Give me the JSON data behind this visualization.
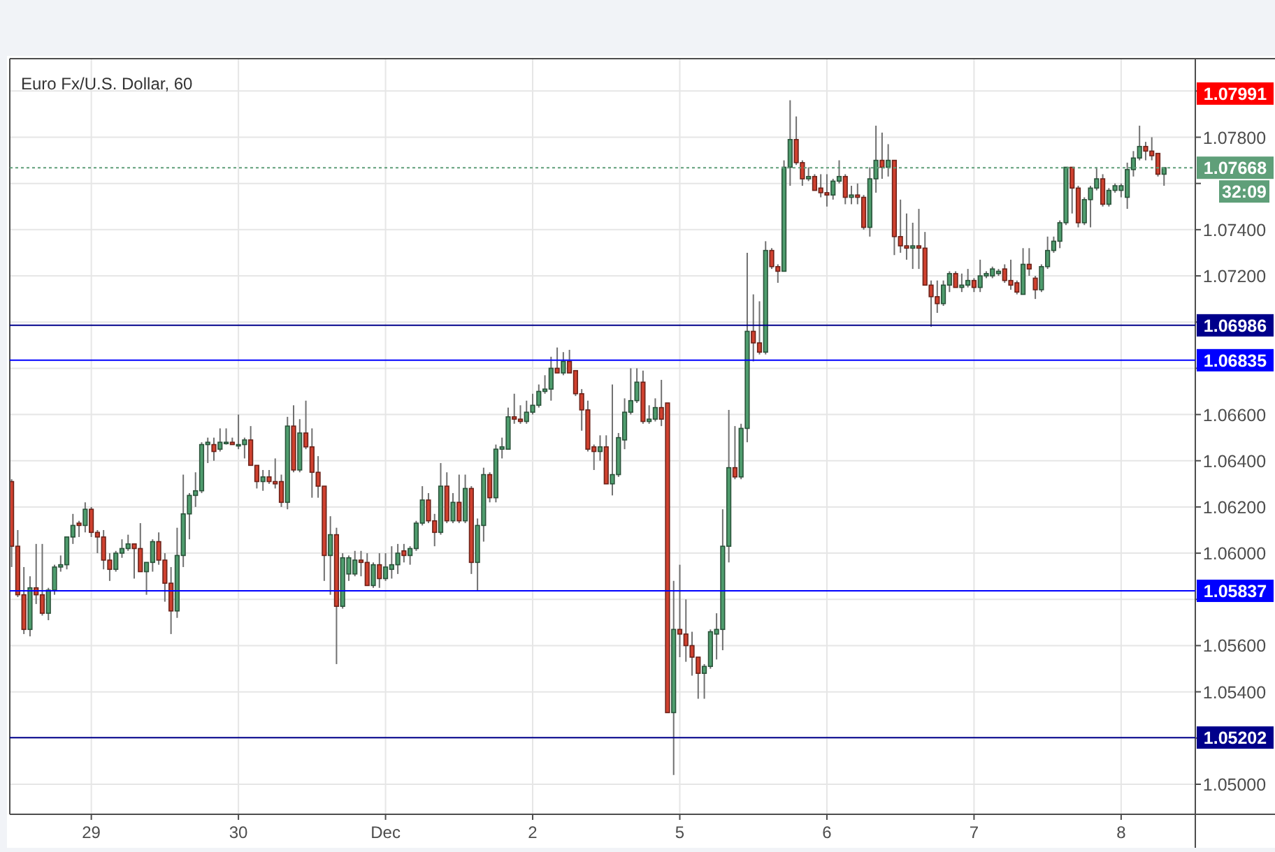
{
  "chart_data": {
    "type": "candlestick",
    "title": "Euro Fx/U.S. Dollar, 60",
    "categories": [
      null,
      null,
      null,
      null,
      null,
      null,
      null,
      null,
      null,
      null,
      null,
      null,
      null,
      "29",
      null,
      null,
      null,
      null,
      null,
      null,
      null,
      null,
      null,
      null,
      null,
      null,
      null,
      null,
      null,
      null,
      null,
      null,
      null,
      null,
      null,
      null,
      null,
      "30",
      null,
      null,
      null,
      null,
      null,
      null,
      null,
      null,
      null,
      null,
      null,
      null,
      null,
      null,
      null,
      null,
      null,
      null,
      null,
      null,
      null,
      null,
      null,
      "Dec",
      null,
      null,
      null,
      null,
      null,
      null,
      null,
      null,
      null,
      null,
      null,
      null,
      null,
      null,
      null,
      null,
      null,
      null,
      null,
      null,
      null,
      null,
      null,
      "2",
      null,
      null,
      null,
      null,
      null,
      null,
      null,
      null,
      null,
      null,
      null,
      null,
      null,
      null,
      null,
      null,
      null,
      null,
      null,
      null,
      null,
      null,
      null,
      "5",
      null,
      null,
      null,
      null,
      null,
      null,
      null,
      null,
      null,
      null,
      null,
      null,
      null,
      null,
      null,
      null,
      null,
      null,
      null,
      null,
      null,
      null,
      null,
      "6",
      null,
      null,
      null,
      null,
      null,
      null,
      null,
      null,
      null,
      null,
      null,
      null,
      null,
      null,
      null,
      null,
      null,
      null,
      null,
      null,
      null,
      null,
      null,
      "7",
      null,
      null,
      null,
      null,
      null,
      null,
      null,
      null,
      null,
      null,
      null,
      null,
      null,
      null,
      null,
      null,
      null,
      null,
      null,
      null,
      null,
      null,
      null,
      "8",
      null,
      null,
      null,
      null,
      null,
      null,
      null
    ],
    "ohlc": [
      [
        1.0631,
        1.0632,
        1.0594,
        1.0603
      ],
      [
        1.0603,
        1.061,
        1.0581,
        1.0582
      ],
      [
        1.0582,
        1.0594,
        1.0565,
        1.0567
      ],
      [
        1.0567,
        1.059,
        1.0564,
        1.0585
      ],
      [
        1.0585,
        1.0604,
        1.0578,
        1.0582
      ],
      [
        1.0582,
        1.0604,
        1.0573,
        1.0574
      ],
      [
        1.0574,
        1.0585,
        1.0571,
        1.0584
      ],
      [
        1.0584,
        1.0595,
        1.0582,
        1.0594
      ],
      [
        1.0594,
        1.0599,
        1.0592,
        1.0595
      ],
      [
        1.0595,
        1.0607,
        1.0593,
        1.0607
      ],
      [
        1.0607,
        1.0617,
        1.0604,
        1.0612
      ],
      [
        1.0613,
        1.0614,
        1.0607,
        1.0612
      ],
      [
        1.0612,
        1.0622,
        1.0609,
        1.0619
      ],
      [
        1.0619,
        1.062,
        1.0607,
        1.0609
      ],
      [
        1.0609,
        1.061,
        1.06,
        1.0607
      ],
      [
        1.0607,
        1.061,
        1.0593,
        1.0597
      ],
      [
        1.0597,
        1.06,
        1.0588,
        1.0593
      ],
      [
        1.0593,
        1.0601,
        1.0592,
        1.06
      ],
      [
        1.06,
        1.0606,
        1.0598,
        1.0602
      ],
      [
        1.0602,
        1.0608,
        1.0601,
        1.0604
      ],
      [
        1.0604,
        1.0604,
        1.0589,
        1.0602
      ],
      [
        1.0602,
        1.0613,
        1.0592,
        1.0592
      ],
      [
        1.0592,
        1.0596,
        1.0582,
        1.0596
      ],
      [
        1.0596,
        1.0606,
        1.0592,
        1.0605
      ],
      [
        1.0605,
        1.0609,
        1.0595,
        1.0597
      ],
      [
        1.0597,
        1.06,
        1.0579,
        1.0587
      ],
      [
        1.0587,
        1.0594,
        1.0565,
        1.0575
      ],
      [
        1.0575,
        1.0611,
        1.0572,
        1.0599
      ],
      [
        1.0599,
        1.0634,
        1.0594,
        1.0617
      ],
      [
        1.0617,
        1.0626,
        1.0606,
        1.0625
      ],
      [
        1.0625,
        1.0635,
        1.062,
        1.0627
      ],
      [
        1.0627,
        1.0648,
        1.0626,
        1.0647
      ],
      [
        1.0647,
        1.065,
        1.0639,
        1.0648
      ],
      [
        1.0647,
        1.065,
        1.064,
        1.0644
      ],
      [
        1.0645,
        1.0654,
        1.0644,
        1.0648
      ],
      [
        1.0648,
        1.0654,
        1.0647,
        1.0648
      ],
      [
        1.0648,
        1.065,
        1.0647,
        1.0647
      ],
      [
        1.0647,
        1.066,
        1.0645,
        1.0647
      ],
      [
        1.0647,
        1.065,
        1.0641,
        1.0649
      ],
      [
        1.0649,
        1.0655,
        1.0638,
        1.0638
      ],
      [
        1.0638,
        1.0638,
        1.0628,
        1.0631
      ],
      [
        1.0631,
        1.0636,
        1.0627,
        1.0633
      ],
      [
        1.0633,
        1.0636,
        1.063,
        1.0631
      ],
      [
        1.0631,
        1.0641,
        1.0628,
        1.063
      ],
      [
        1.0631,
        1.0634,
        1.062,
        1.0622
      ],
      [
        1.0622,
        1.0659,
        1.0619,
        1.0655
      ],
      [
        1.0655,
        1.0664,
        1.0635,
        1.0636
      ],
      [
        1.0636,
        1.0658,
        1.0635,
        1.0652
      ],
      [
        1.0652,
        1.0666,
        1.0645,
        1.0646
      ],
      [
        1.0646,
        1.0654,
        1.0624,
        1.0635
      ],
      [
        1.0635,
        1.0642,
        1.0624,
        1.0629
      ],
      [
        1.0629,
        1.0629,
        1.0588,
        1.0599
      ],
      [
        1.0599,
        1.0616,
        1.0582,
        1.0608
      ],
      [
        1.0608,
        1.0611,
        1.0552,
        1.0577
      ],
      [
        1.0577,
        1.06,
        1.0576,
        1.0598
      ],
      [
        1.0591,
        1.0599,
        1.0588,
        1.0598
      ],
      [
        1.0591,
        1.0601,
        1.059,
        1.0597
      ],
      [
        1.0597,
        1.0601,
        1.059,
        1.0596
      ],
      [
        1.0596,
        1.06,
        1.0586,
        1.0586
      ],
      [
        1.0586,
        1.0596,
        1.0585,
        1.0595
      ],
      [
        1.0595,
        1.06,
        1.0585,
        1.0589
      ],
      [
        1.0589,
        1.06,
        1.0588,
        1.0594
      ],
      [
        1.0593,
        1.0603,
        1.0589,
        1.0595
      ],
      [
        1.0595,
        1.0604,
        1.0591,
        1.06
      ],
      [
        1.0601,
        1.0604,
        1.0596,
        1.0599
      ],
      [
        1.0599,
        1.0603,
        1.0595,
        1.0602
      ],
      [
        1.0602,
        1.0614,
        1.0601,
        1.0613
      ],
      [
        1.0613,
        1.0629,
        1.0612,
        1.0623
      ],
      [
        1.0623,
        1.0626,
        1.0613,
        1.0614
      ],
      [
        1.0614,
        1.0617,
        1.0603,
        1.0609
      ],
      [
        1.0609,
        1.0639,
        1.0608,
        1.0629
      ],
      [
        1.0629,
        1.0635,
        1.0613,
        1.0614
      ],
      [
        1.0614,
        1.0626,
        1.0613,
        1.0622
      ],
      [
        1.0622,
        1.0634,
        1.0613,
        1.0614
      ],
      [
        1.0614,
        1.0634,
        1.0613,
        1.0628
      ],
      [
        1.0628,
        1.0629,
        1.0591,
        1.0596
      ],
      [
        1.0596,
        1.0615,
        1.0584,
        1.0612
      ],
      [
        1.0612,
        1.0637,
        1.0605,
        1.0634
      ],
      [
        1.0634,
        1.0635,
        1.0622,
        1.0624
      ],
      [
        1.0624,
        1.0647,
        1.0622,
        1.0645
      ],
      [
        1.0645,
        1.065,
        1.0641,
        1.0646
      ],
      [
        1.0645,
        1.0663,
        1.0645,
        1.0659
      ],
      [
        1.0659,
        1.0669,
        1.0656,
        1.0658
      ],
      [
        1.0658,
        1.0664,
        1.0656,
        1.0657
      ],
      [
        1.0657,
        1.0666,
        1.0656,
        1.0661
      ],
      [
        1.0661,
        1.0669,
        1.066,
        1.0664
      ],
      [
        1.0664,
        1.0673,
        1.0663,
        1.067
      ],
      [
        1.067,
        1.0677,
        1.0669,
        1.0671
      ],
      [
        1.0671,
        1.0685,
        1.0666,
        1.068
      ],
      [
        1.068,
        1.0689,
        1.0678,
        1.0678
      ],
      [
        1.0678,
        1.0687,
        1.0677,
        1.0683
      ],
      [
        1.0683,
        1.0688,
        1.0678,
        1.0678
      ],
      [
        1.0679,
        1.0679,
        1.0668,
        1.0669
      ],
      [
        1.0669,
        1.0671,
        1.0653,
        1.0662
      ],
      [
        1.0662,
        1.0666,
        1.0644,
        1.0645
      ],
      [
        1.0646,
        1.0647,
        1.0636,
        1.0644
      ],
      [
        1.0644,
        1.0651,
        1.064,
        1.0646
      ],
      [
        1.0646,
        1.0651,
        1.063,
        1.063
      ],
      [
        1.063,
        1.0673,
        1.0625,
        1.0634
      ],
      [
        1.0634,
        1.0652,
        1.0633,
        1.065
      ],
      [
        1.0649,
        1.0667,
        1.0645,
        1.0661
      ],
      [
        1.0661,
        1.068,
        1.066,
        1.0666
      ],
      [
        1.0666,
        1.068,
        1.0665,
        1.0674
      ],
      [
        1.0674,
        1.0679,
        1.0656,
        1.0657
      ],
      [
        1.0657,
        1.0664,
        1.0656,
        1.0658
      ],
      [
        1.0658,
        1.0667,
        1.0657,
        1.0663
      ],
      [
        1.0663,
        1.0675,
        1.0655,
        1.0658
      ],
      [
        1.0665,
        1.0665,
        1.0531,
        1.0531
      ],
      [
        1.0531,
        1.0588,
        1.0504,
        1.0567
      ],
      [
        1.0567,
        1.0595,
        1.0555,
        1.0565
      ],
      [
        1.0565,
        1.058,
        1.0553,
        1.056
      ],
      [
        1.056,
        1.0566,
        1.0547,
        1.0555
      ],
      [
        1.0555,
        1.0555,
        1.0537,
        1.0548
      ],
      [
        1.0548,
        1.0552,
        1.0537,
        1.0551
      ],
      [
        1.0551,
        1.0567,
        1.055,
        1.0566
      ],
      [
        1.0565,
        1.0574,
        1.0554,
        1.0567
      ],
      [
        1.0567,
        1.0619,
        1.0558,
        1.0603
      ],
      [
        1.0603,
        1.0662,
        1.0596,
        1.0637
      ],
      [
        1.0637,
        1.0655,
        1.0632,
        1.0633
      ],
      [
        1.0633,
        1.0656,
        1.0632,
        1.0654
      ],
      [
        1.0654,
        1.073,
        1.0648,
        1.0696
      ],
      [
        1.0696,
        1.0712,
        1.0683,
        1.0691
      ],
      [
        1.0691,
        1.0709,
        1.0686,
        1.0687
      ],
      [
        1.0687,
        1.0735,
        1.0686,
        1.0731
      ],
      [
        1.0731,
        1.0732,
        1.0723,
        1.0724
      ],
      [
        1.0724,
        1.0725,
        1.0717,
        1.0722
      ],
      [
        1.0722,
        1.077,
        1.0722,
        1.0767
      ],
      [
        1.0767,
        1.0796,
        1.0759,
        1.0779
      ],
      [
        1.0779,
        1.0789,
        1.0768,
        1.0769
      ],
      [
        1.0769,
        1.077,
        1.0759,
        1.0762
      ],
      [
        1.0762,
        1.0767,
        1.0761,
        1.0763
      ],
      [
        1.0763,
        1.0764,
        1.0757,
        1.0757
      ],
      [
        1.0758,
        1.0764,
        1.0754,
        1.0756
      ],
      [
        1.0756,
        1.0764,
        1.075,
        1.0755
      ],
      [
        1.0755,
        1.0762,
        1.0753,
        1.0761
      ],
      [
        1.0761,
        1.077,
        1.076,
        1.0763
      ],
      [
        1.0763,
        1.0764,
        1.0751,
        1.0754
      ],
      [
        1.0754,
        1.0759,
        1.0751,
        1.0755
      ],
      [
        1.0755,
        1.076,
        1.0751,
        1.0754
      ],
      [
        1.0754,
        1.0755,
        1.074,
        1.0741
      ],
      [
        1.0741,
        1.0767,
        1.0737,
        1.0762
      ],
      [
        1.0762,
        1.0785,
        1.0756,
        1.077
      ],
      [
        1.077,
        1.0782,
        1.0762,
        1.0767
      ],
      [
        1.0767,
        1.0777,
        1.0763,
        1.077
      ],
      [
        1.077,
        1.077,
        1.0729,
        1.0737
      ],
      [
        1.0737,
        1.0753,
        1.073,
        1.0733
      ],
      [
        1.0733,
        1.0747,
        1.0727,
        1.0732
      ],
      [
        1.0732,
        1.0743,
        1.0723,
        1.0733
      ],
      [
        1.0733,
        1.0749,
        1.0723,
        1.0732
      ],
      [
        1.0732,
        1.0739,
        1.0716,
        1.0716
      ],
      [
        1.0716,
        1.0718,
        1.0698,
        1.0711
      ],
      [
        1.0711,
        1.0718,
        1.0704,
        1.0708
      ],
      [
        1.0708,
        1.0718,
        1.0707,
        1.0716
      ],
      [
        1.0716,
        1.0722,
        1.0713,
        1.0721
      ],
      [
        1.0721,
        1.0722,
        1.0715,
        1.0715
      ],
      [
        1.0715,
        1.0721,
        1.0713,
        1.0716
      ],
      [
        1.0716,
        1.0723,
        1.0715,
        1.0718
      ],
      [
        1.0718,
        1.0719,
        1.0713,
        1.0715
      ],
      [
        1.0715,
        1.0727,
        1.0713,
        1.072
      ],
      [
        1.072,
        1.0722,
        1.0719,
        1.0721
      ],
      [
        1.072,
        1.0724,
        1.0719,
        1.0723
      ],
      [
        1.0721,
        1.0723,
        1.072,
        1.0722
      ],
      [
        1.0723,
        1.0725,
        1.0717,
        1.0718
      ],
      [
        1.0718,
        1.0727,
        1.0714,
        1.0716
      ],
      [
        1.0717,
        1.0718,
        1.0712,
        1.0713
      ],
      [
        1.0712,
        1.0732,
        1.0712,
        1.0725
      ],
      [
        1.0725,
        1.0732,
        1.072,
        1.0723
      ],
      [
        1.0719,
        1.072,
        1.071,
        1.0714
      ],
      [
        1.0714,
        1.0725,
        1.0713,
        1.0724
      ],
      [
        1.0724,
        1.0737,
        1.0723,
        1.0731
      ],
      [
        1.0731,
        1.0737,
        1.073,
        1.0735
      ],
      [
        1.0735,
        1.0744,
        1.0732,
        1.0743
      ],
      [
        1.0743,
        1.0767,
        1.0742,
        1.0767
      ],
      [
        1.0767,
        1.0767,
        1.0747,
        1.0758
      ],
      [
        1.0758,
        1.0759,
        1.0741,
        1.0743
      ],
      [
        1.0743,
        1.0754,
        1.0742,
        1.0753
      ],
      [
        1.0753,
        1.0759,
        1.0741,
        1.0758
      ],
      [
        1.0758,
        1.0767,
        1.0757,
        1.0762
      ],
      [
        1.0762,
        1.0764,
        1.075,
        1.0751
      ],
      [
        1.0751,
        1.0758,
        1.075,
        1.0757
      ],
      [
        1.0757,
        1.076,
        1.0756,
        1.0759
      ],
      [
        1.0757,
        1.076,
        1.0754,
        1.0759
      ],
      [
        1.0754,
        1.0769,
        1.0749,
        1.0766
      ],
      [
        1.0766,
        1.0774,
        1.0763,
        1.0771
      ],
      [
        1.0771,
        1.0785,
        1.077,
        1.0776
      ],
      [
        1.0776,
        1.0778,
        1.077,
        1.0774
      ],
      [
        1.0774,
        1.078,
        1.077,
        1.0772
      ],
      [
        1.0773,
        1.0773,
        1.0763,
        1.0764
      ],
      [
        1.0764,
        1.0767,
        1.0759,
        1.07668
      ]
    ],
    "colors": [
      "#d0412f",
      "#d0412f",
      "#d0412f",
      "#4f9d6e",
      "#d0412f",
      "#d0412f",
      "#4f9d6e",
      "#4f9d6e",
      "#4f9d6e",
      "#4f9d6e",
      "#4f9d6e",
      "#d0412f",
      "#4f9d6e",
      "#d0412f",
      "#d0412f",
      "#d0412f",
      "#d0412f",
      "#4f9d6e",
      "#4f9d6e",
      "#4f9d6e",
      "#d0412f",
      "#d0412f",
      "#4f9d6e",
      "#4f9d6e",
      "#d0412f",
      "#d0412f",
      "#d0412f",
      "#4f9d6e",
      "#4f9d6e",
      "#4f9d6e",
      "#4f9d6e",
      "#4f9d6e",
      "#4f9d6e",
      "#d0412f",
      "#4f9d6e",
      "#4f9d6e",
      "#d0412f",
      "#4f9d6e",
      "#4f9d6e",
      "#d0412f",
      "#d0412f",
      "#4f9d6e",
      "#d0412f",
      "#d0412f",
      "#d0412f",
      "#4f9d6e",
      "#d0412f",
      "#4f9d6e",
      "#d0412f",
      "#d0412f",
      "#d0412f",
      "#d0412f",
      "#4f9d6e",
      "#d0412f",
      "#4f9d6e",
      "#4f9d6e",
      "#4f9d6e",
      "#d0412f",
      "#d0412f",
      "#4f9d6e",
      "#d0412f",
      "#4f9d6e",
      "#4f9d6e",
      "#4f9d6e",
      "#d0412f",
      "#4f9d6e",
      "#4f9d6e",
      "#4f9d6e",
      "#d0412f",
      "#d0412f",
      "#4f9d6e",
      "#d0412f",
      "#4f9d6e",
      "#d0412f",
      "#4f9d6e",
      "#d0412f",
      "#4f9d6e",
      "#4f9d6e",
      "#d0412f",
      "#4f9d6e",
      "#4f9d6e",
      "#4f9d6e",
      "#d0412f",
      "#d0412f",
      "#4f9d6e",
      "#4f9d6e",
      "#4f9d6e",
      "#4f9d6e",
      "#4f9d6e",
      "#d0412f",
      "#4f9d6e",
      "#d0412f",
      "#d0412f",
      "#d0412f",
      "#d0412f",
      "#d0412f",
      "#4f9d6e",
      "#d0412f",
      "#4f9d6e",
      "#4f9d6e",
      "#4f9d6e",
      "#4f9d6e",
      "#4f9d6e",
      "#d0412f",
      "#4f9d6e",
      "#4f9d6e",
      "#d0412f",
      "#d0412f",
      "#4f9d6e",
      "#d0412f",
      "#d0412f",
      "#d0412f",
      "#d0412f",
      "#4f9d6e",
      "#4f9d6e",
      "#4f9d6e",
      "#4f9d6e",
      "#4f9d6e",
      "#d0412f",
      "#4f9d6e",
      "#4f9d6e",
      "#d0412f",
      "#d0412f",
      "#4f9d6e",
      "#d0412f",
      "#d0412f",
      "#4f9d6e",
      "#4f9d6e",
      "#d0412f",
      "#d0412f",
      "#4f9d6e",
      "#d0412f",
      "#d0412f",
      "#d0412f",
      "#4f9d6e",
      "#4f9d6e",
      "#d0412f",
      "#4f9d6e",
      "#d0412f",
      "#d0412f",
      "#4f9d6e",
      "#4f9d6e",
      "#d0412f",
      "#4f9d6e",
      "#d0412f",
      "#d0412f",
      "#d0412f",
      "#4f9d6e",
      "#d0412f",
      "#d0412f",
      "#d0412f",
      "#d0412f",
      "#4f9d6e",
      "#4f9d6e",
      "#d0412f",
      "#4f9d6e",
      "#4f9d6e",
      "#d0412f",
      "#4f9d6e",
      "#4f9d6e",
      "#4f9d6e",
      "#4f9d6e",
      "#d0412f",
      "#d0412f",
      "#d0412f",
      "#4f9d6e",
      "#d0412f",
      "#d0412f",
      "#4f9d6e",
      "#4f9d6e",
      "#4f9d6e",
      "#4f9d6e",
      "#4f9d6e",
      "#d0412f",
      "#d0412f",
      "#4f9d6e",
      "#4f9d6e",
      "#4f9d6e",
      "#d0412f",
      "#4f9d6e",
      "#4f9d6e",
      "#4f9d6e",
      "#4f9d6e",
      "#4f9d6e",
      "#4f9d6e",
      "#d0412f",
      "#d0412f",
      "#d0412f",
      "#4f9d6e"
    ],
    "ylim": [
      1.0487,
      1.0814
    ],
    "yticks": [
      {
        "value": 1.05,
        "label": "1.05000"
      },
      {
        "value": 1.052,
        "label": null
      },
      {
        "value": 1.054,
        "label": "1.05400"
      },
      {
        "value": 1.056,
        "label": "1.05600"
      },
      {
        "value": 1.058,
        "label": null
      },
      {
        "value": 1.06,
        "label": "1.06000"
      },
      {
        "value": 1.062,
        "label": "1.06200"
      },
      {
        "value": 1.064,
        "label": "1.06400"
      },
      {
        "value": 1.066,
        "label": "1.06600"
      },
      {
        "value": 1.068,
        "label": null
      },
      {
        "value": 1.07,
        "label": null
      },
      {
        "value": 1.072,
        "label": "1.07200"
      },
      {
        "value": 1.074,
        "label": "1.07400"
      },
      {
        "value": 1.076,
        "label": null
      },
      {
        "value": 1.078,
        "label": "1.07800"
      },
      {
        "value": 1.08,
        "label": null
      }
    ],
    "grid": true,
    "ref_lines": [
      {
        "axis": "y",
        "value": 1.06986,
        "label": "1.06986",
        "color": "#00008b"
      },
      {
        "axis": "y",
        "value": 1.06835,
        "label": "1.06835",
        "color": "#0000ff"
      },
      {
        "axis": "y",
        "value": 1.05837,
        "label": "1.05837",
        "color": "#0000ff"
      },
      {
        "axis": "y",
        "value": 1.05202,
        "label": "1.05202",
        "color": "#00008b"
      },
      {
        "axis": "y",
        "value": 1.07668,
        "label": "1.07668",
        "color": "#5f9f79",
        "line_style": "dotted"
      }
    ],
    "annotations": [
      "1.07991",
      "32:09"
    ]
  }
}
